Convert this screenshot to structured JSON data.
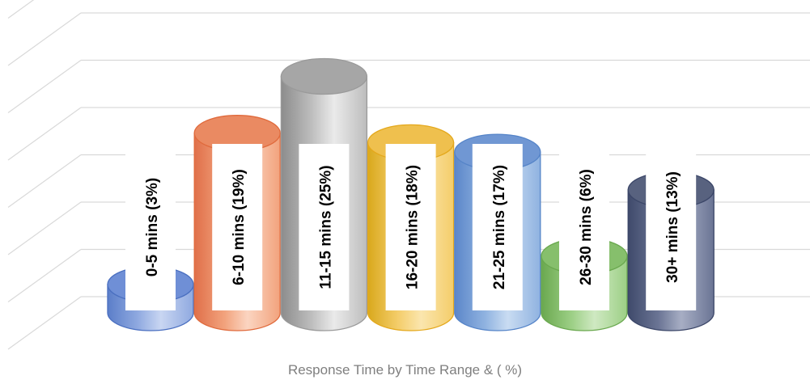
{
  "chart_data": {
    "type": "bar",
    "style": "3d-cylinder",
    "title": "",
    "xlabel": "Response Time by Time Range & ( %)",
    "ylabel": "",
    "grid": true,
    "ylim": [
      0,
      30
    ],
    "categories": [
      "0-5 mins",
      "6-10 mins",
      "11-15 mins",
      "16-20 mins",
      "21-25 mins",
      "26-30 mins",
      "30+ mins"
    ],
    "values": [
      3,
      19,
      25,
      18,
      17,
      6,
      13
    ],
    "data_labels": [
      "0-5 mins (3%)",
      "6-10 mins (19%)",
      "11-15 mins (25%)",
      "16-20 mins (18%)",
      "21-25 mins (17%)",
      "26-30 mins (6%)",
      "30+ mins (13%)"
    ],
    "colors": [
      {
        "base": "#8fa9e0",
        "light": "#c9d6f2",
        "dark": "#5b7ec9",
        "top": "#6f8fd6",
        "border": "#4a6fc0"
      },
      {
        "base": "#f2a27c",
        "light": "#fbd5c1",
        "dark": "#e0704a",
        "top": "#ea8a62",
        "border": "#e06a3c"
      },
      {
        "base": "#bdbdbd",
        "light": "#eaeaea",
        "dark": "#8c8c8c",
        "top": "#a6a6a6",
        "border": "#9a9a9a"
      },
      {
        "base": "#f4cd6a",
        "light": "#fbe6ae",
        "dark": "#d9a81c",
        "top": "#efc04e",
        "border": "#e4a81c"
      },
      {
        "base": "#8fb2e0",
        "light": "#c9dcf2",
        "dark": "#5b86c9",
        "top": "#7097d3",
        "border": "#5584c8"
      },
      {
        "base": "#9ccf85",
        "light": "#cfe9c2",
        "dark": "#6aa84f",
        "top": "#86bf6c",
        "border": "#6aa84f"
      },
      {
        "base": "#6a7494",
        "light": "#a7aec4",
        "dark": "#3f4a6b",
        "top": "#58627f",
        "border": "#3b4668"
      }
    ]
  }
}
